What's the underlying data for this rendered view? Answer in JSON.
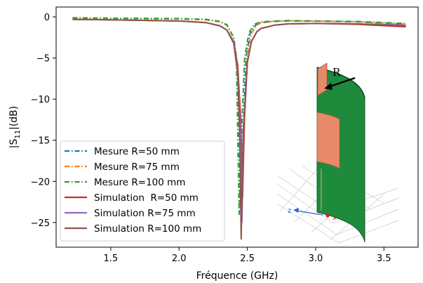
{
  "chart_data": {
    "type": "line",
    "xlabel": "Fréquence (GHz)",
    "ylabel": "|S11|(dB)",
    "xlim": [
      1.1,
      3.75
    ],
    "ylim": [
      -28,
      1.2
    ],
    "xticks": [
      1.5,
      2.0,
      2.5,
      3.0,
      3.5
    ],
    "xtick_labels": [
      "1.5",
      "2.0",
      "2.5",
      "3.0",
      "3.5"
    ],
    "yticks": [
      0,
      -5,
      -10,
      -15,
      -20,
      -25
    ],
    "ytick_labels": [
      "0",
      "−5",
      "−10",
      "−15",
      "−20",
      "−25"
    ],
    "legend_position": "lower-left",
    "grid": false,
    "series": [
      {
        "name": "Mesure R=50 mm",
        "color": "#1f77b4",
        "style": "dashdot",
        "x": [
          1.22,
          1.5,
          2.0,
          2.2,
          2.3,
          2.35,
          2.4,
          2.43,
          2.45,
          2.47,
          2.49,
          2.52,
          2.56,
          2.6,
          2.7,
          2.8,
          3.0,
          3.3,
          3.66
        ],
        "y": [
          -0.2,
          -0.2,
          -0.25,
          -0.35,
          -0.6,
          -1.0,
          -2.5,
          -6.0,
          -23.0,
          -14.0,
          -5.0,
          -2.0,
          -1.0,
          -0.7,
          -0.55,
          -0.5,
          -0.5,
          -0.6,
          -0.9
        ]
      },
      {
        "name": "Mesure R=75 mm",
        "color": "#ff7f0e",
        "style": "dashdot",
        "x": [
          1.22,
          1.5,
          2.0,
          2.2,
          2.3,
          2.35,
          2.4,
          2.43,
          2.455,
          2.48,
          2.5,
          2.53,
          2.57,
          2.6,
          2.7,
          2.8,
          3.0,
          3.3,
          3.66
        ],
        "y": [
          -0.2,
          -0.2,
          -0.25,
          -0.35,
          -0.6,
          -1.0,
          -2.5,
          -6.0,
          -21.0,
          -12.0,
          -4.5,
          -2.0,
          -1.0,
          -0.7,
          -0.55,
          -0.5,
          -0.5,
          -0.6,
          -0.9
        ]
      },
      {
        "name": "Mesure R=100 mm",
        "color": "#2ca02c",
        "style": "dashdot",
        "x": [
          1.22,
          1.5,
          2.0,
          2.2,
          2.3,
          2.35,
          2.4,
          2.42,
          2.44,
          2.46,
          2.48,
          2.51,
          2.55,
          2.6,
          2.7,
          2.8,
          3.0,
          3.3,
          3.66
        ],
        "y": [
          -0.1,
          -0.15,
          -0.2,
          -0.3,
          -0.55,
          -0.95,
          -2.5,
          -5.0,
          -24.0,
          -13.0,
          -5.0,
          -2.0,
          -0.9,
          -0.6,
          -0.5,
          -0.45,
          -0.5,
          -0.55,
          -0.8
        ]
      },
      {
        "name": "Simulation  R=50 mm",
        "color": "#d62728",
        "style": "solid",
        "x": [
          1.22,
          1.5,
          2.0,
          2.2,
          2.3,
          2.35,
          2.4,
          2.43,
          2.45,
          2.465,
          2.48,
          2.5,
          2.53,
          2.57,
          2.6,
          2.7,
          2.8,
          3.0,
          3.3,
          3.66
        ],
        "y": [
          -0.3,
          -0.35,
          -0.5,
          -0.7,
          -1.1,
          -1.6,
          -3.0,
          -6.0,
          -12.0,
          -22.0,
          -12.0,
          -5.5,
          -3.0,
          -1.8,
          -1.4,
          -1.0,
          -0.85,
          -0.8,
          -0.9,
          -1.2
        ]
      },
      {
        "name": "Simulation R=75 mm",
        "color": "#9467bd",
        "style": "solid",
        "x": [
          1.22,
          1.5,
          2.0,
          2.2,
          2.3,
          2.35,
          2.4,
          2.43,
          2.45,
          2.46,
          2.475,
          2.5,
          2.53,
          2.57,
          2.6,
          2.7,
          2.8,
          3.0,
          3.3,
          3.66
        ],
        "y": [
          -0.3,
          -0.35,
          -0.5,
          -0.7,
          -1.1,
          -1.6,
          -3.0,
          -6.5,
          -14.0,
          -25.0,
          -13.0,
          -5.5,
          -3.0,
          -1.8,
          -1.4,
          -1.0,
          -0.85,
          -0.8,
          -0.85,
          -1.0
        ]
      },
      {
        "name": "Simulation R=100 mm",
        "color": "#8c564b",
        "style": "solid",
        "x": [
          1.22,
          1.5,
          2.0,
          2.2,
          2.3,
          2.35,
          2.4,
          2.43,
          2.445,
          2.455,
          2.47,
          2.5,
          2.53,
          2.57,
          2.6,
          2.7,
          2.8,
          3.0,
          3.3,
          3.66
        ],
        "y": [
          -0.3,
          -0.35,
          -0.5,
          -0.7,
          -1.1,
          -1.6,
          -3.2,
          -7.0,
          -15.0,
          -27.0,
          -14.0,
          -5.5,
          -3.0,
          -1.8,
          -1.4,
          -1.0,
          -0.85,
          -0.8,
          -0.85,
          -1.1
        ]
      }
    ]
  },
  "inset": {
    "radius_label": "R",
    "axis_z_label": "z",
    "axis_x_label": "x",
    "colors": {
      "substrate": "#1e8a3c",
      "patch": "#e8896a",
      "axis_z": "#3060d0",
      "axis_x": "#d02020",
      "grid": "#bdbdbd"
    }
  }
}
